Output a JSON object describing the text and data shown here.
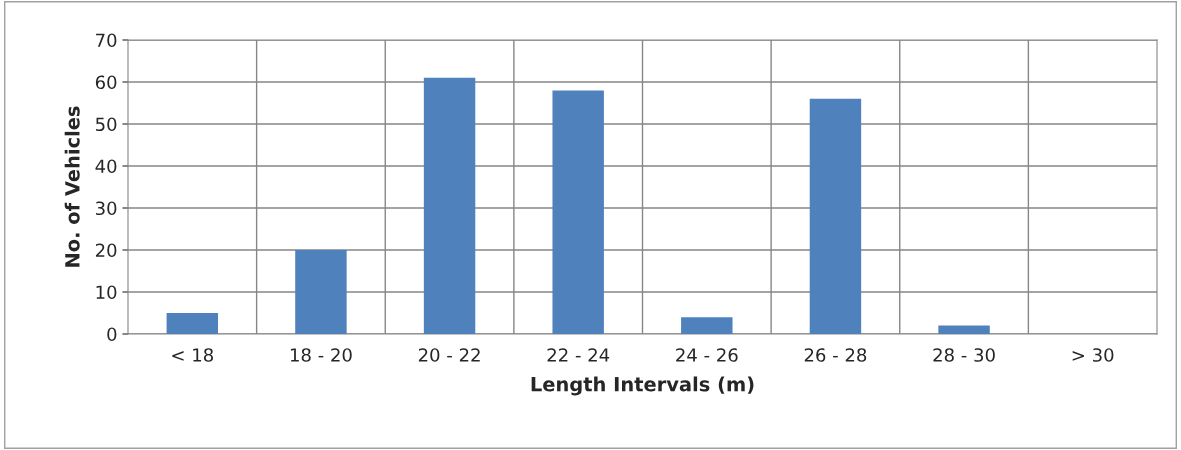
{
  "chart_data": {
    "type": "bar",
    "xlabel": "Length Intervals (m)",
    "ylabel": "No. of Vehicles",
    "categories": [
      "< 18",
      "18 - 20",
      "20 - 22",
      "22 - 24",
      "24 - 26",
      "26 - 28",
      "28 - 30",
      "> 30"
    ],
    "values": [
      5,
      20,
      61,
      58,
      4,
      56,
      2,
      0
    ],
    "color": "#4f81bd",
    "ylim": [
      0,
      70
    ],
    "yticks": [
      0,
      10,
      20,
      30,
      40,
      50,
      60,
      70
    ],
    "grid": true
  }
}
